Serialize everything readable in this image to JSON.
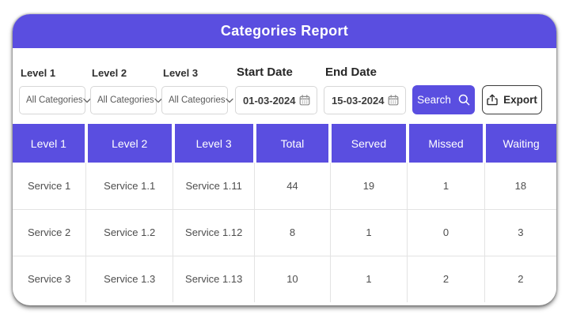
{
  "header": {
    "title": "Categories Report"
  },
  "filters": {
    "level1": {
      "label": "Level 1",
      "value": "All Categories"
    },
    "level2": {
      "label": "Level 2",
      "value": "All Categories"
    },
    "level3": {
      "label": "Level 3",
      "value": "All Categories"
    },
    "start_date": {
      "label": "Start Date",
      "value": "01-03-2024"
    },
    "end_date": {
      "label": "End Date",
      "value": "15-03-2024"
    },
    "search_label": "Search",
    "export_label": "Export"
  },
  "table": {
    "columns": [
      "Level 1",
      "Level 2",
      "Level 3",
      "Total",
      "Served",
      "Missed",
      "Waiting"
    ],
    "rows": [
      [
        "Service 1",
        "Service 1.1",
        "Service 1.11",
        "44",
        "19",
        "1",
        "18"
      ],
      [
        "Service 2",
        "Service 1.2",
        "Service 1.12",
        "8",
        "1",
        "0",
        "3"
      ],
      [
        "Service 3",
        "Service 1.3",
        "Service 1.13",
        "10",
        "1",
        "2",
        "2"
      ]
    ]
  },
  "colors": {
    "accent": "#5a4ee0",
    "header_text": "#ffffff",
    "body_text": "#4e4e4e"
  }
}
